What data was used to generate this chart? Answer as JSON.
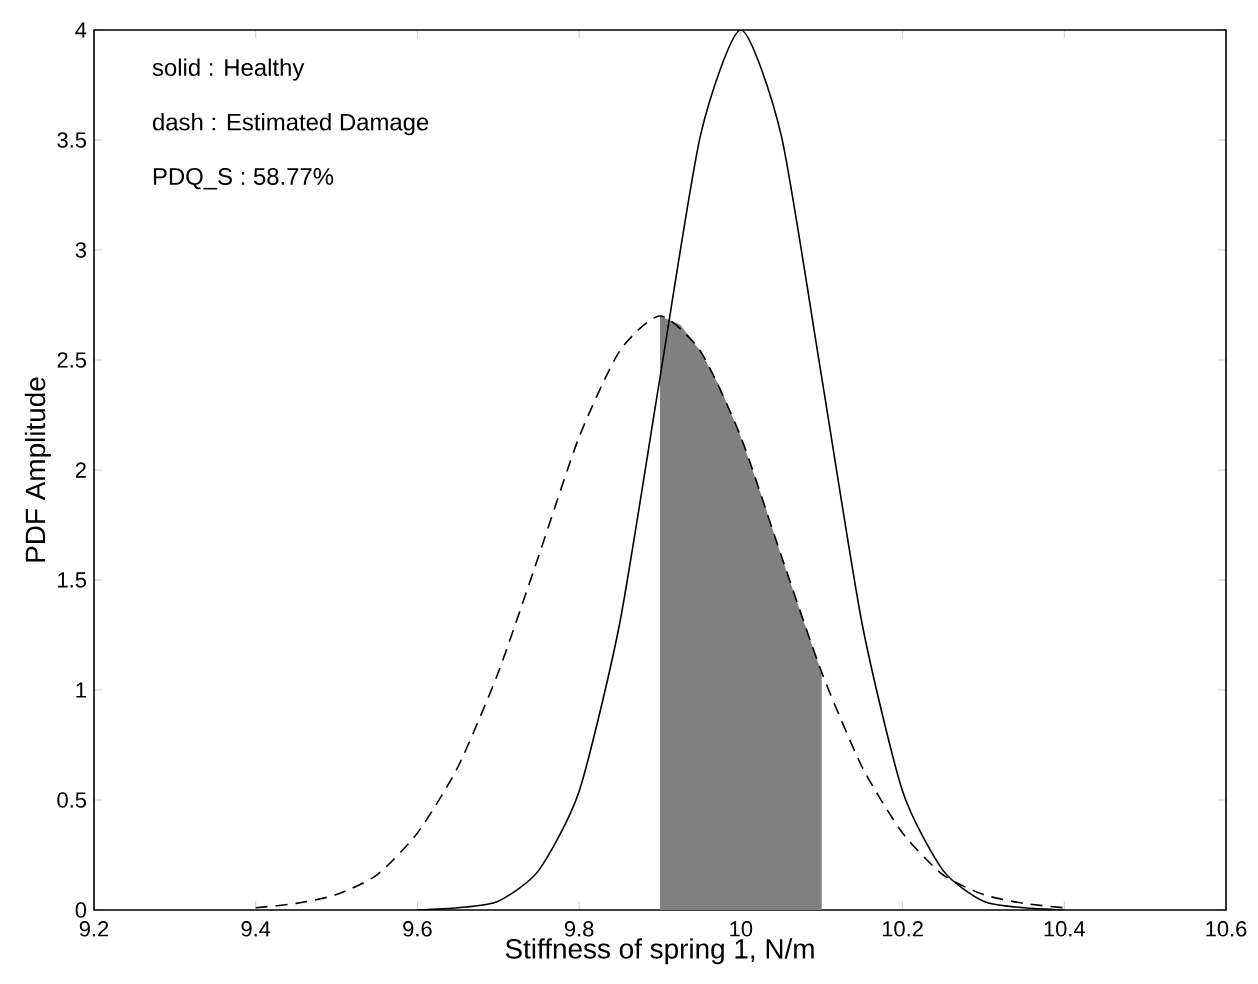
{
  "chart_data": {
    "type": "line",
    "xlabel": "Stiffness of spring 1, N/m",
    "ylabel": "PDF Amplitude",
    "annotations": [
      "solid : Healthy",
      "dash : Estimated Damage",
      "PDQ_S : 58.77%"
    ],
    "xlim": [
      9.2,
      10.6
    ],
    "ylim": [
      0,
      4
    ],
    "xticks": [
      9.2,
      9.4,
      9.6,
      9.8,
      10,
      10.2,
      10.4,
      10.6
    ],
    "yticks": [
      0,
      0.5,
      1,
      1.5,
      2,
      2.5,
      3,
      3.5,
      4
    ],
    "grid": false,
    "marker": "none",
    "series": [
      {
        "type": "area",
        "color": "#808080",
        "x": [
          9.9,
          9.925,
          9.95,
          9.975,
          10.0,
          10.025,
          10.05,
          10.075,
          10.1
        ],
        "values": [
          2.7,
          2.66,
          2.54,
          2.37,
          2.15,
          1.89,
          1.61,
          1.34,
          1.08
        ]
      },
      {
        "line_style": "dashed",
        "color": "#000000",
        "x": [
          9.4,
          9.45,
          9.5,
          9.55,
          9.6,
          9.65,
          9.7,
          9.75,
          9.8,
          9.85,
          9.9,
          9.95,
          10.0,
          10.05,
          10.1,
          10.15,
          10.2,
          10.25,
          10.3,
          10.35,
          10.4
        ],
        "values": [
          0.01,
          0.03,
          0.07,
          0.16,
          0.35,
          0.65,
          1.08,
          1.61,
          2.15,
          2.54,
          2.7,
          2.54,
          2.15,
          1.61,
          1.08,
          0.65,
          0.35,
          0.16,
          0.07,
          0.03,
          0.01
        ]
      },
      {
        "line_style": "solid",
        "color": "#000000",
        "x": [
          9.6,
          9.65,
          9.7,
          9.75,
          9.8,
          9.85,
          9.9,
          9.95,
          10.0,
          10.05,
          10.1,
          10.15,
          10.2,
          10.25,
          10.3,
          10.35,
          10.4
        ],
        "values": [
          0.0,
          0.01,
          0.04,
          0.18,
          0.54,
          1.3,
          2.42,
          3.52,
          4.0,
          3.52,
          2.42,
          1.3,
          0.54,
          0.18,
          0.04,
          0.01,
          0.0
        ]
      }
    ]
  }
}
